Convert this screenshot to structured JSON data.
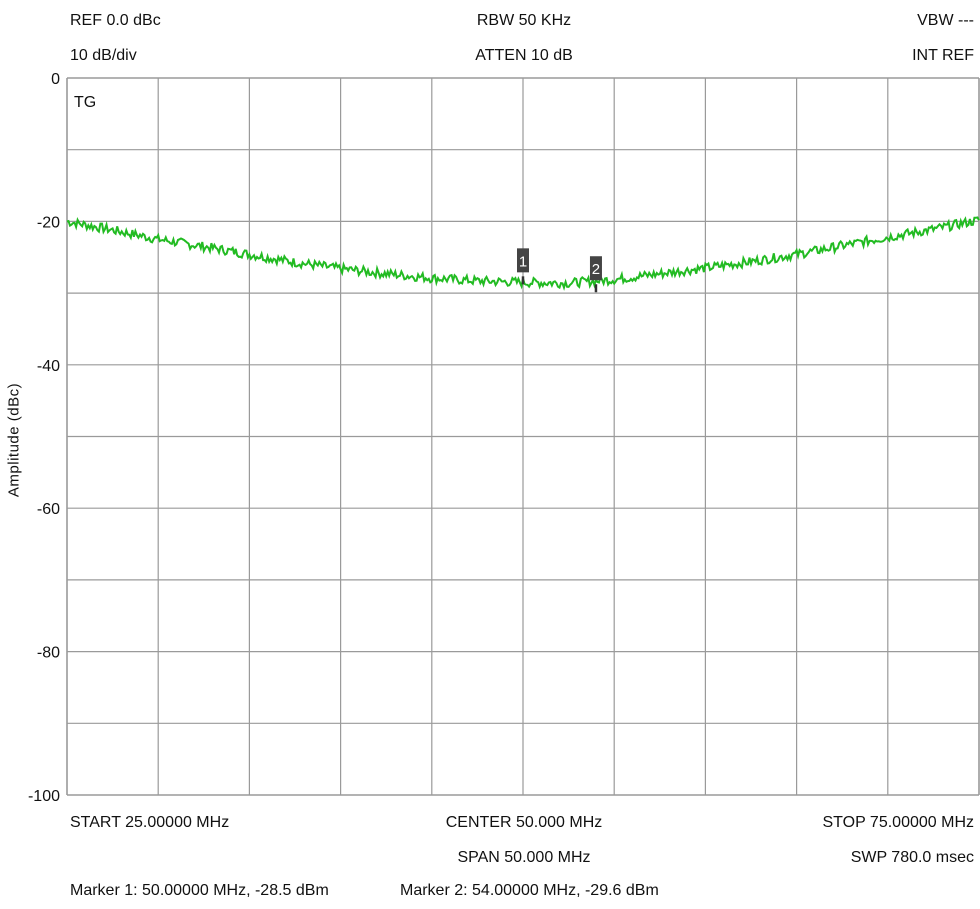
{
  "header": {
    "ref": "REF 0.0 dBc",
    "scale": "10 dB/div",
    "rbw": "RBW 50 KHz",
    "atten": "ATTEN 10 dB",
    "vbw": "VBW ---",
    "int_ref": "INT REF",
    "trace_label": "TG"
  },
  "footer": {
    "start": "START 25.00000 MHz",
    "center": "CENTER 50.000 MHz",
    "stop": "STOP 75.00000 MHz",
    "span": "SPAN 50.000 MHz",
    "sweep": "SWP 780.0 msec",
    "marker1_readout": "Marker 1: 50.00000 MHz, -28.5 dBm",
    "marker2_readout": "Marker 2: 54.00000 MHz, -29.6 dBm"
  },
  "chart_data": {
    "type": "line",
    "ylabel": "Amplitude (dBc)",
    "xlim": [
      25,
      75
    ],
    "ylim": [
      -100,
      0
    ],
    "y_ticks": [
      "0",
      "-20",
      "-40",
      "-60",
      "-80",
      "-100"
    ],
    "x_divisions": 10,
    "y_divisions": 10,
    "grid": true,
    "trace_color": "#22bb22",
    "series": [
      {
        "x": [
          25,
          27.5,
          30,
          32.5,
          35,
          37.5,
          40,
          42.5,
          45,
          47.5,
          50,
          52.5,
          55,
          57.5,
          60,
          62.5,
          65,
          67.5,
          70,
          72.5,
          75
        ],
        "y": [
          -20,
          -21.2,
          -22.5,
          -23.5,
          -24.6,
          -25.7,
          -26.6,
          -27.3,
          -27.9,
          -28.3,
          -28.5,
          -28.6,
          -28.1,
          -27.3,
          -26.5,
          -25.6,
          -24.6,
          -23.4,
          -22.2,
          -21.1,
          -19.8
        ]
      }
    ],
    "markers": [
      {
        "label": "1",
        "x": 50,
        "y": -28.5
      },
      {
        "label": "2",
        "x": 54,
        "y": -29.6
      }
    ]
  }
}
